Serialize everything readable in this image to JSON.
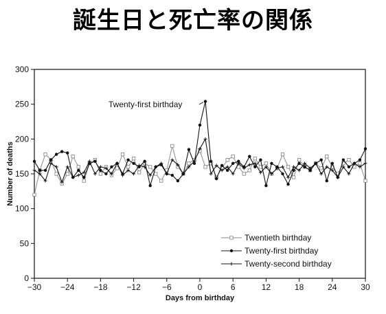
{
  "page": {
    "title": "誕生日と死亡率の関係"
  },
  "chart_data": {
    "type": "line",
    "title": "",
    "xlabel": "Days from birthday",
    "ylabel": "Number of deaths",
    "xlim": [
      -30,
      30
    ],
    "ylim": [
      0,
      300
    ],
    "xticks": [
      -30,
      -24,
      -18,
      -12,
      -6,
      0,
      6,
      12,
      18,
      24,
      30
    ],
    "xtick_labels": [
      "−30",
      "−24",
      "−18",
      "−12",
      "−6",
      "0",
      "6",
      "12",
      "18",
      "24",
      "30"
    ],
    "yticks": [
      0,
      50,
      100,
      150,
      200,
      250,
      300
    ],
    "grid": false,
    "legend_position": "bottom-right",
    "annotations": [
      {
        "text": "Twenty-first birthday",
        "x": 1,
        "y": 254
      }
    ],
    "x": [
      -30,
      -29,
      -28,
      -27,
      -26,
      -25,
      -24,
      -23,
      -22,
      -21,
      -20,
      -19,
      -18,
      -17,
      -16,
      -15,
      -14,
      -13,
      -12,
      -11,
      -10,
      -9,
      -8,
      -7,
      -6,
      -5,
      -4,
      -3,
      -2,
      -1,
      0,
      1,
      2,
      3,
      4,
      5,
      6,
      7,
      8,
      9,
      10,
      11,
      12,
      13,
      14,
      15,
      16,
      17,
      18,
      19,
      20,
      21,
      22,
      23,
      24,
      25,
      26,
      27,
      28,
      29,
      30
    ],
    "series": [
      {
        "name": "Twentieth birthday",
        "marker": "open-square",
        "color": "#8a8a8a",
        "values": [
          120,
          155,
          178,
          170,
          150,
          136,
          150,
          175,
          160,
          140,
          165,
          170,
          150,
          160,
          148,
          158,
          178,
          160,
          172,
          152,
          165,
          160,
          150,
          140,
          155,
          190,
          160,
          150,
          165,
          170,
          183,
          160,
          165,
          145,
          158,
          170,
          175,
          160,
          150,
          155,
          172,
          160,
          165,
          150,
          158,
          178,
          160,
          145,
          170,
          160,
          155,
          165,
          158,
          175,
          160,
          150,
          165,
          170,
          160,
          165,
          140
        ]
      },
      {
        "name": "Twenty-first birthday",
        "marker": "filled-dot",
        "color": "#111111",
        "values": [
          168,
          155,
          155,
          170,
          178,
          182,
          180,
          145,
          155,
          145,
          165,
          168,
          155,
          150,
          160,
          165,
          150,
          170,
          165,
          160,
          168,
          133,
          160,
          163,
          150,
          148,
          140,
          150,
          185,
          165,
          220,
          254,
          168,
          143,
          162,
          155,
          165,
          168,
          160,
          175,
          160,
          170,
          133,
          165,
          160,
          150,
          135,
          155,
          165,
          160,
          155,
          165,
          170,
          140,
          165,
          145,
          170,
          160,
          165,
          170,
          186
        ]
      },
      {
        "name": "Twenty-second birthday",
        "marker": "cross",
        "color": "#111111",
        "values": [
          155,
          150,
          140,
          165,
          160,
          138,
          160,
          145,
          148,
          152,
          168,
          150,
          160,
          158,
          150,
          165,
          148,
          155,
          150,
          162,
          160,
          148,
          160,
          165,
          150,
          170,
          163,
          150,
          160,
          168,
          186,
          200,
          150,
          162,
          155,
          160,
          150,
          165,
          158,
          163,
          165,
          152,
          160,
          150,
          158,
          160,
          145,
          160,
          155,
          165,
          158,
          165,
          150,
          160,
          155,
          145,
          160,
          150,
          165,
          160,
          165
        ]
      }
    ]
  }
}
